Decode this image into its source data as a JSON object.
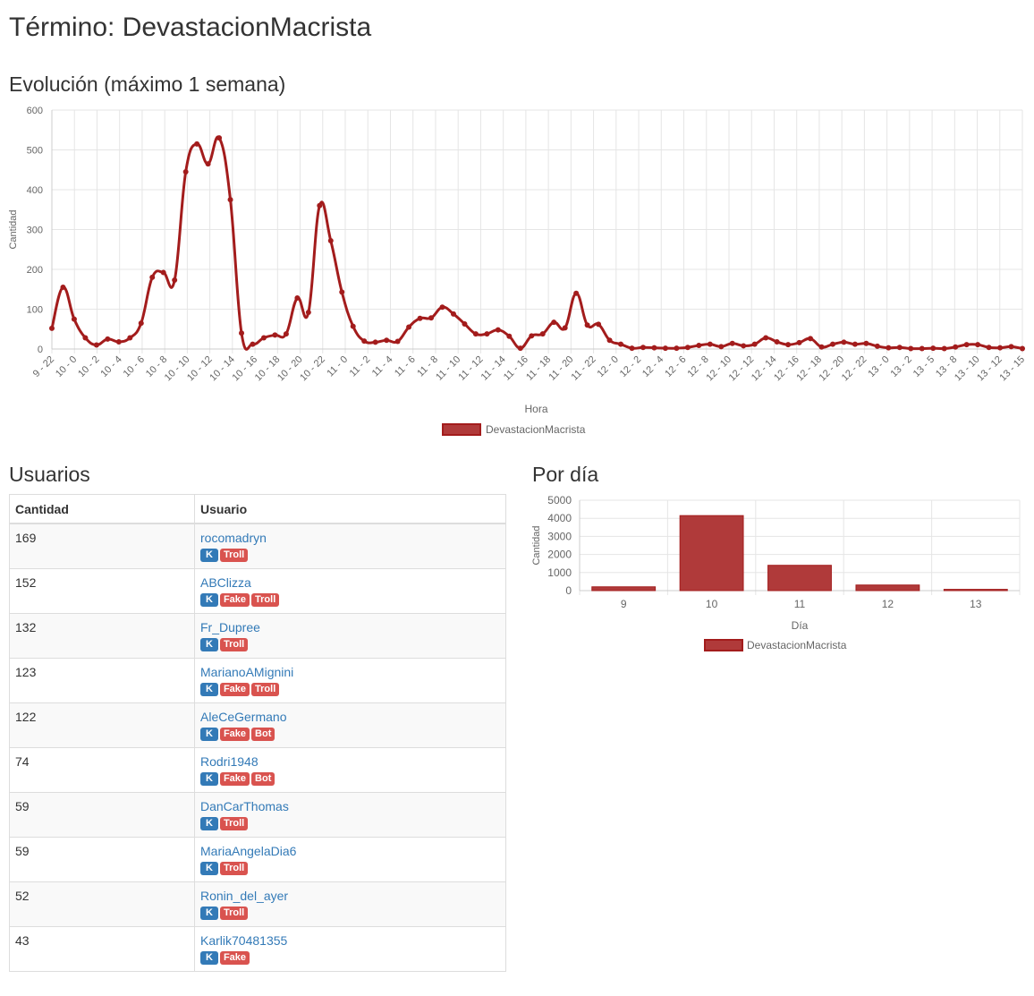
{
  "page": {
    "title": "Término: DevastacionMacrista",
    "evolution_title": "Evolución (máximo 1 semana)",
    "users_title": "Usuarios",
    "daily_title": "Por día"
  },
  "colors": {
    "series": "#a31c1c",
    "series_fill": "#b03a3a",
    "grid": "#e5e5e5",
    "link": "#337ab7",
    "badge_blue": "#337ab7",
    "badge_red": "#d9534f"
  },
  "chart_data": [
    {
      "type": "line",
      "xlabel": "Hora",
      "ylabel": "Cantidad",
      "ylim": [
        0,
        600
      ],
      "yticks": [
        0,
        100,
        200,
        300,
        400,
        500,
        600
      ],
      "grid": true,
      "legend": "bottom-center",
      "x_tick_labels": [
        "9 - 22",
        "10 - 0",
        "10 - 2",
        "10 - 4",
        "10 - 6",
        "10 - 8",
        "10 - 10",
        "10 - 12",
        "10 - 14",
        "10 - 16",
        "10 - 18",
        "10 - 20",
        "10 - 22",
        "11 - 0",
        "11 - 2",
        "11 - 4",
        "11 - 6",
        "11 - 8",
        "11 - 10",
        "11 - 12",
        "11 - 14",
        "11 - 16",
        "11 - 18",
        "11 - 20",
        "11 - 22",
        "12 - 0",
        "12 - 2",
        "12 - 4",
        "12 - 6",
        "12 - 8",
        "12 - 10",
        "12 - 12",
        "12 - 14",
        "12 - 16",
        "12 - 18",
        "12 - 20",
        "12 - 22",
        "13 - 0",
        "13 - 2",
        "13 - 5",
        "13 - 8",
        "13 - 10",
        "13 - 12",
        "13 - 15"
      ],
      "series": [
        {
          "name": "DevastacionMacrista",
          "values": [
            52,
            155,
            75,
            28,
            10,
            25,
            18,
            28,
            65,
            180,
            192,
            173,
            445,
            515,
            465,
            530,
            375,
            40,
            12,
            28,
            35,
            38,
            128,
            92,
            360,
            272,
            143,
            57,
            20,
            17,
            22,
            19,
            55,
            77,
            78,
            105,
            88,
            63,
            38,
            38,
            48,
            32,
            2,
            33,
            38,
            67,
            53,
            140,
            60,
            62,
            22,
            12,
            2,
            4,
            3,
            2,
            2,
            4,
            9,
            12,
            6,
            14,
            8,
            12,
            28,
            18,
            11,
            16,
            26,
            5,
            12,
            17,
            12,
            14,
            7,
            3,
            4,
            1,
            1,
            2,
            1,
            5,
            11,
            11,
            4,
            3,
            6,
            1
          ]
        }
      ]
    },
    {
      "type": "bar",
      "xlabel": "Día",
      "ylabel": "Cantidad",
      "ylim": [
        0,
        5000
      ],
      "yticks": [
        0,
        1000,
        2000,
        3000,
        4000,
        5000
      ],
      "grid": true,
      "legend": "bottom-center",
      "categories": [
        "9",
        "10",
        "11",
        "12",
        "13"
      ],
      "series": [
        {
          "name": "DevastacionMacrista",
          "values": [
            210,
            4150,
            1400,
            310,
            70
          ]
        }
      ]
    }
  ],
  "users_table": {
    "headers": [
      "Cantidad",
      "Usuario"
    ],
    "rows": [
      {
        "count": "169",
        "user": "rocomadryn",
        "badges": [
          "K",
          "Troll"
        ]
      },
      {
        "count": "152",
        "user": "ABClizza",
        "badges": [
          "K",
          "Fake",
          "Troll"
        ]
      },
      {
        "count": "132",
        "user": "Fr_Dupree",
        "badges": [
          "K",
          "Troll"
        ]
      },
      {
        "count": "123",
        "user": "MarianoAMignini",
        "badges": [
          "K",
          "Fake",
          "Troll"
        ]
      },
      {
        "count": "122",
        "user": "AleCeGermano",
        "badges": [
          "K",
          "Fake",
          "Bot"
        ]
      },
      {
        "count": "74",
        "user": "Rodri1948",
        "badges": [
          "K",
          "Fake",
          "Bot"
        ]
      },
      {
        "count": "59",
        "user": "DanCarThomas",
        "badges": [
          "K",
          "Troll"
        ]
      },
      {
        "count": "59",
        "user": "MariaAngelaDia6",
        "badges": [
          "K",
          "Troll"
        ]
      },
      {
        "count": "52",
        "user": "Ronin_del_ayer",
        "badges": [
          "K",
          "Troll"
        ]
      },
      {
        "count": "43",
        "user": "Karlik70481355",
        "badges": [
          "K",
          "Fake"
        ]
      }
    ]
  }
}
